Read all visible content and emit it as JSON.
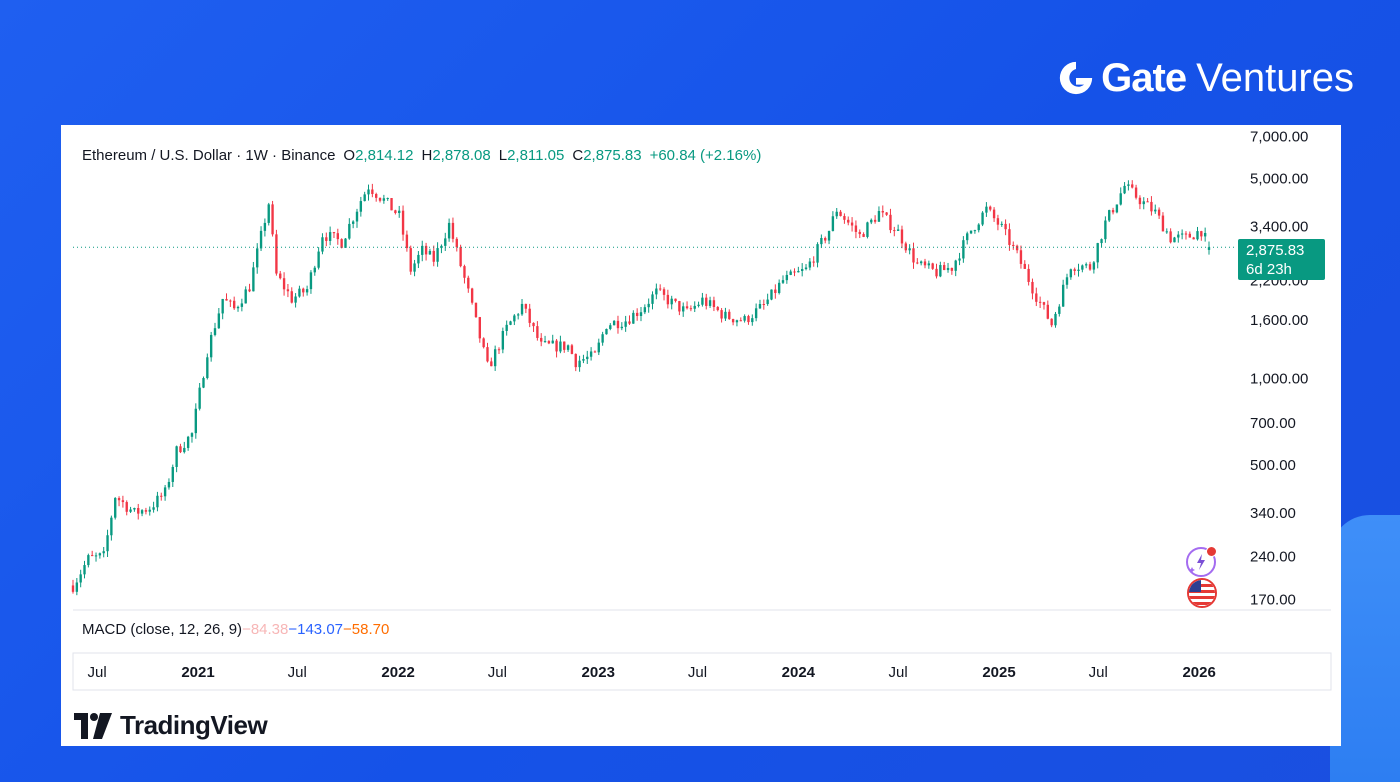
{
  "brand": {
    "strong": "Gate",
    "light": "Ventures",
    "icon": "gate-g-icon",
    "color": "#ffffff"
  },
  "footer": {
    "logo_text": "TradingView"
  },
  "legend": {
    "symbol": "Ethereum / U.S. Dollar · 1W · Binance",
    "open_label": "O",
    "open": "2,814.12",
    "high_label": "H",
    "high": "2,878.08",
    "low_label": "L",
    "low": "2,811.05",
    "close_label": "C",
    "close": "2,875.83",
    "change": "+60.84 (+2.16%)"
  },
  "macd": {
    "title": "MACD (close, 12, 26, 9)",
    "v1": "−84.38",
    "v2": "−143.07",
    "v3": "−58.70"
  },
  "price_tag": {
    "price": "2,875.83",
    "countdown": "6d 23h"
  },
  "colors": {
    "up": "#089981",
    "down": "#f23645",
    "background": "#1552e8"
  },
  "chart_data": {
    "type": "candlestick",
    "title": "Ethereum / U.S. Dollar · 1W · Binance",
    "y_scale": "log",
    "ylim": [
      165,
      7200
    ],
    "y_ticks": [
      7000,
      5000,
      3400,
      2200,
      1600,
      1000,
      700,
      500,
      340,
      240,
      170
    ],
    "y_tick_labels": [
      "7,000.00",
      "5,000.00",
      "3,400.00",
      "2,200.00",
      "1,600.00",
      "1,000.00",
      "700.00",
      "500.00",
      "340.00",
      "240.00",
      "170.00"
    ],
    "x_ticks": [
      {
        "date": "2020-07-01",
        "label": "Jul",
        "bold": false
      },
      {
        "date": "2021-01-01",
        "label": "2021",
        "bold": true
      },
      {
        "date": "2021-07-01",
        "label": "Jul",
        "bold": false
      },
      {
        "date": "2022-01-01",
        "label": "2022",
        "bold": true
      },
      {
        "date": "2022-07-01",
        "label": "Jul",
        "bold": false
      },
      {
        "date": "2023-01-01",
        "label": "2023",
        "bold": true
      },
      {
        "date": "2023-07-01",
        "label": "Jul",
        "bold": false
      },
      {
        "date": "2024-01-01",
        "label": "2024",
        "bold": true
      },
      {
        "date": "2024-07-01",
        "label": "Jul",
        "bold": false
      },
      {
        "date": "2025-01-01",
        "label": "2025",
        "bold": true
      },
      {
        "date": "2025-07-01",
        "label": "Jul",
        "bold": false
      },
      {
        "date": "2026-01-01",
        "label": "2026",
        "bold": true
      }
    ],
    "x_start": "2020-05-18",
    "x_end": "2026-01-19",
    "last_close": 2875.83,
    "price_path": [
      [
        "2020-05-18",
        190
      ],
      [
        "2020-06-15",
        235
      ],
      [
        "2020-07-13",
        240
      ],
      [
        "2020-08-03",
        390
      ],
      [
        "2020-09-07",
        340
      ],
      [
        "2020-10-05",
        355
      ],
      [
        "2020-11-02",
        400
      ],
      [
        "2020-11-23",
        560
      ],
      [
        "2020-12-21",
        640
      ],
      [
        "2021-01-18",
        1250
      ],
      [
        "2021-02-15",
        1900
      ],
      [
        "2021-03-08",
        1750
      ],
      [
        "2021-04-05",
        2100
      ],
      [
        "2021-05-10",
        4100
      ],
      [
        "2021-05-24",
        2300
      ],
      [
        "2021-06-21",
        1900
      ],
      [
        "2021-07-19",
        2050
      ],
      [
        "2021-08-16",
        3200
      ],
      [
        "2021-09-20",
        3000
      ],
      [
        "2021-10-25",
        4200
      ],
      [
        "2021-11-08",
        4700
      ],
      [
        "2021-12-06",
        4200
      ],
      [
        "2022-01-03",
        3700
      ],
      [
        "2022-01-24",
        2400
      ],
      [
        "2022-02-14",
        2800
      ],
      [
        "2022-03-07",
        2600
      ],
      [
        "2022-04-04",
        3450
      ],
      [
        "2022-05-09",
        2000
      ],
      [
        "2022-06-13",
        1100
      ],
      [
        "2022-06-20",
        1150
      ],
      [
        "2022-07-18",
        1500
      ],
      [
        "2022-08-15",
        1800
      ],
      [
        "2022-09-19",
        1300
      ],
      [
        "2022-10-17",
        1300
      ],
      [
        "2022-11-07",
        1300
      ],
      [
        "2022-11-21",
        1150
      ],
      [
        "2022-12-26",
        1200
      ],
      [
        "2023-01-16",
        1550
      ],
      [
        "2023-02-20",
        1600
      ],
      [
        "2023-03-20",
        1750
      ],
      [
        "2023-04-17",
        2000
      ],
      [
        "2023-06-12",
        1700
      ],
      [
        "2023-07-10",
        1880
      ],
      [
        "2023-08-21",
        1650
      ],
      [
        "2023-09-25",
        1600
      ],
      [
        "2023-10-30",
        1800
      ],
      [
        "2023-12-04",
        2200
      ],
      [
        "2024-01-15",
        2400
      ],
      [
        "2024-02-26",
        3300
      ],
      [
        "2024-03-11",
        3900
      ],
      [
        "2024-04-22",
        3150
      ],
      [
        "2024-05-27",
        3800
      ],
      [
        "2024-07-01",
        3250
      ],
      [
        "2024-08-05",
        2500
      ],
      [
        "2024-09-09",
        2350
      ],
      [
        "2024-10-07",
        2450
      ],
      [
        "2024-11-11",
        3300
      ],
      [
        "2024-12-09",
        3900
      ],
      [
        "2025-01-06",
        3350
      ],
      [
        "2025-02-03",
        2700
      ],
      [
        "2025-03-10",
        1950
      ],
      [
        "2025-04-07",
        1550
      ],
      [
        "2025-05-12",
        2500
      ],
      [
        "2025-06-16",
        2450
      ],
      [
        "2025-07-14",
        3500
      ],
      [
        "2025-08-18",
        4700
      ],
      [
        "2025-09-22",
        4100
      ],
      [
        "2025-10-13",
        3800
      ],
      [
        "2025-11-10",
        3100
      ],
      [
        "2025-12-08",
        3100
      ],
      [
        "2026-01-05",
        3300
      ],
      [
        "2026-01-19",
        2875.83
      ]
    ]
  }
}
